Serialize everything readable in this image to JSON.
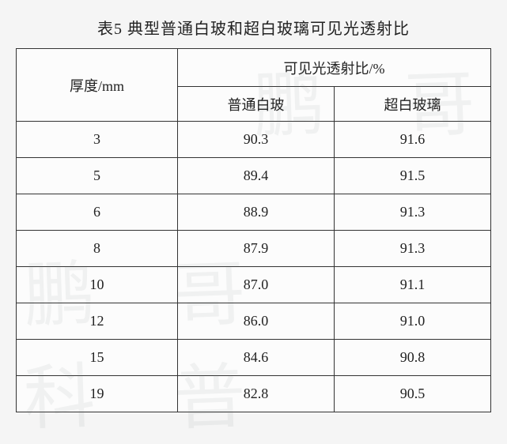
{
  "title": "表5 典型普通白玻和超白玻璃可见光透射比",
  "table": {
    "header": {
      "thickness": "厚度/mm",
      "group": "可见光透射比/%",
      "col1": "普通白玻",
      "col2": "超白玻璃"
    },
    "rows": [
      {
        "thickness": "3",
        "v1": "90.3",
        "v2": "91.6"
      },
      {
        "thickness": "5",
        "v1": "89.4",
        "v2": "91.5"
      },
      {
        "thickness": "6",
        "v1": "88.9",
        "v2": "91.3"
      },
      {
        "thickness": "8",
        "v1": "87.9",
        "v2": "91.3"
      },
      {
        "thickness": "10",
        "v1": "87.0",
        "v2": "91.1"
      },
      {
        "thickness": "12",
        "v1": "86.0",
        "v2": "91.0"
      },
      {
        "thickness": "15",
        "v1": "84.6",
        "v2": "90.8"
      },
      {
        "thickness": "19",
        "v1": "82.8",
        "v2": "90.5"
      }
    ]
  },
  "watermark": {
    "a": "鹏",
    "b": "哥",
    "c": "科",
    "d": "普"
  },
  "style": {
    "border_color": "#333333",
    "text_color": "#222222",
    "background": "#fcfcfc",
    "title_fontsize": 20,
    "cell_fontsize": 18,
    "watermark_color": "rgba(100,120,110,0.08)",
    "watermark_fontsize": 90
  }
}
